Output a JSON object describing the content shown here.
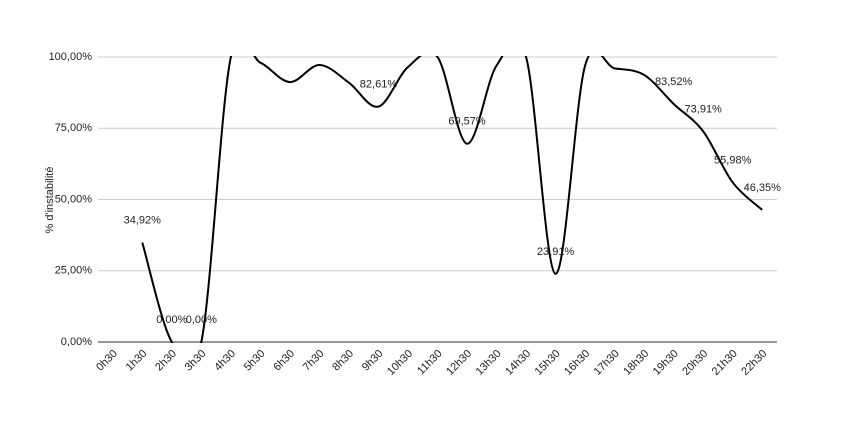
{
  "chart_data": {
    "type": "line",
    "y_axis_label": "% d'instabilité",
    "categories": [
      "0h30",
      "1h30",
      "2h30",
      "3h30",
      "4h30",
      "5h30",
      "6h30",
      "7h30",
      "8h30",
      "9h30",
      "10h30",
      "11h30",
      "12h30",
      "13h30",
      "14h30",
      "15h30",
      "16h30",
      "17h30",
      "18h30",
      "19h30",
      "20h30",
      "21h30",
      "22h30"
    ],
    "series": [
      {
        "name": null,
        "color": "#000000",
        "values": [
          null,
          34.92,
          0,
          0,
          100,
          98,
          91.2,
          97.2,
          91,
          82.61,
          96.5,
          100,
          69.57,
          97,
          100,
          23.91,
          97,
          96,
          93.7,
          83.52,
          73.91,
          55.98,
          46.35
        ],
        "value_labels": [
          null,
          "34,92%",
          "0,00%",
          "0,00%",
          null,
          null,
          null,
          null,
          null,
          "82,61%",
          null,
          null,
          "69,57%",
          null,
          null,
          "23,91%",
          null,
          null,
          null,
          "83,52%",
          "73,91%",
          "55,98%",
          "46,35%"
        ]
      }
    ],
    "ylim": [
      0,
      100
    ],
    "yticks": [
      {
        "value": 0,
        "label": "0,00%"
      },
      {
        "value": 25,
        "label": "25,00%"
      },
      {
        "value": 50,
        "label": "50,00%"
      },
      {
        "value": 75,
        "label": "75,00%"
      },
      {
        "value": 100,
        "label": "100,00%"
      }
    ],
    "grid": true
  }
}
